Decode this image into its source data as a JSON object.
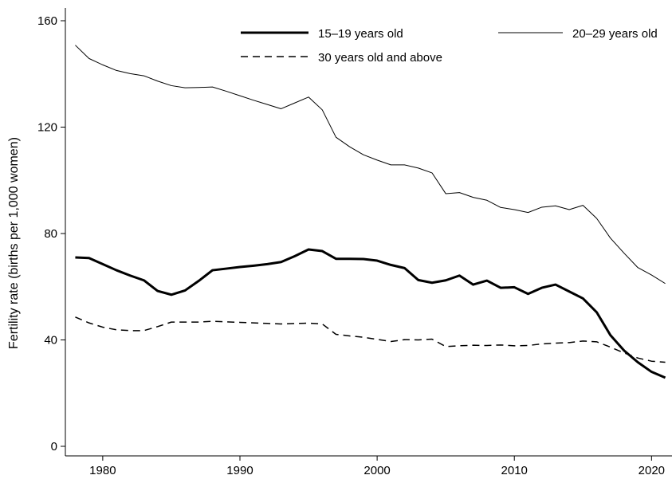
{
  "chart_data": {
    "type": "line",
    "title": "",
    "xlabel": "",
    "ylabel": "Fertility rate (births per 1,000 women)",
    "xlim": [
      1977.8,
      2021.2
    ],
    "ylim": [
      0,
      160
    ],
    "xticks": [
      1980,
      1990,
      2000,
      2010,
      2020
    ],
    "yticks": [
      0,
      40,
      80,
      120,
      160
    ],
    "grid": false,
    "legend_position": "top",
    "x": [
      1978,
      1979,
      1980,
      1981,
      1982,
      1983,
      1984,
      1985,
      1986,
      1987,
      1988,
      1989,
      1990,
      1991,
      1992,
      1993,
      1994,
      1995,
      1996,
      1997,
      1998,
      1999,
      2000,
      2001,
      2002,
      2003,
      2004,
      2005,
      2006,
      2007,
      2008,
      2009,
      2010,
      2011,
      2012,
      2013,
      2014,
      2015,
      2016,
      2017,
      2018,
      2019,
      2020,
      2021
    ],
    "series": [
      {
        "name": "15–19 years old",
        "style": "thick-solid",
        "color": "#000000",
        "values": [
          71.0,
          70.8,
          68.5,
          66.2,
          64.2,
          62.4,
          58.4,
          57.0,
          58.6,
          62.2,
          66.2,
          66.8,
          67.4,
          67.9,
          68.5,
          69.3,
          71.5,
          74.0,
          73.4,
          70.5,
          70.5,
          70.4,
          69.8,
          68.2,
          67.0,
          62.5,
          61.5,
          62.4,
          64.2,
          60.8,
          62.3,
          59.6,
          59.8,
          57.3,
          59.6,
          60.8,
          58.2,
          55.6,
          50.4,
          41.8,
          36.0,
          31.6,
          28.0,
          25.8
        ]
      },
      {
        "name": "20–29 years old",
        "style": "thin-solid",
        "color": "#000000",
        "values": [
          150.8,
          145.8,
          143.4,
          141.3,
          140.1,
          139.3,
          137.3,
          135.6,
          134.8,
          134.9,
          135.1,
          133.5,
          131.8,
          130.1,
          128.5,
          126.9,
          129.1,
          131.3,
          126.5,
          116.2,
          112.6,
          109.6,
          107.6,
          105.8,
          105.8,
          104.6,
          102.8,
          95.0,
          95.4,
          93.6,
          92.5,
          89.8,
          89.0,
          87.9,
          89.9,
          90.4,
          89.0,
          90.6,
          85.7,
          78.3,
          72.6,
          67.2,
          64.4,
          61.2
        ]
      },
      {
        "name": "30 years old and above",
        "style": "dashed",
        "color": "#000000",
        "values": [
          48.6,
          46.4,
          44.8,
          43.8,
          43.5,
          43.5,
          45.0,
          46.7,
          46.7,
          46.7,
          47.0,
          46.8,
          46.6,
          46.4,
          46.2,
          46.0,
          46.2,
          46.3,
          46.0,
          42.1,
          41.5,
          41.0,
          40.2,
          39.4,
          40.1,
          40.0,
          40.3,
          37.5,
          37.8,
          38.0,
          37.9,
          38.1,
          37.8,
          37.9,
          38.5,
          38.8,
          39.0,
          39.6,
          39.3,
          37.3,
          35.1,
          33.2,
          32.0,
          31.6
        ]
      }
    ],
    "tick_labels": {
      "x": [
        "1980",
        "1990",
        "2000",
        "2010",
        "2020"
      ],
      "y": [
        "0",
        "40",
        "80",
        "120",
        "160"
      ]
    }
  }
}
